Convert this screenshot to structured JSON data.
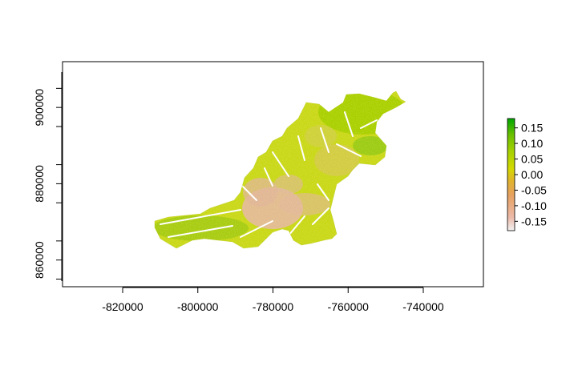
{
  "chart_data": {
    "type": "heatmap",
    "x_ticks": [
      "-820000",
      "-800000",
      "-780000",
      "-760000",
      "-740000"
    ],
    "x_tick_values": [
      -820000,
      -800000,
      -780000,
      -760000,
      -740000
    ],
    "y_ticks": [
      "860000",
      "880000",
      "900000"
    ],
    "y_tick_values": [
      860000,
      880000,
      900000
    ],
    "xlim": [
      -836000,
      -724000
    ],
    "ylim": [
      853000,
      912000
    ],
    "legend": {
      "labels": [
        "0.15",
        "0.10",
        "0.05",
        "0.00",
        "-0.05",
        "-0.10",
        "-0.15"
      ],
      "values": [
        0.15,
        0.1,
        0.05,
        0.0,
        -0.05,
        -0.1,
        -0.15
      ],
      "range": [
        -0.18,
        0.18
      ],
      "placement": "right",
      "colors": [
        "#f2f2f2",
        "#ecb9a8",
        "#e6a15f",
        "#e0b52a",
        "#d4d800",
        "#a8d200",
        "#6cc000",
        "#00a600"
      ]
    },
    "raster_colors": {
      "low": "#e8b4a0",
      "mid": "#c6d818",
      "high": "#9ccc10"
    }
  }
}
